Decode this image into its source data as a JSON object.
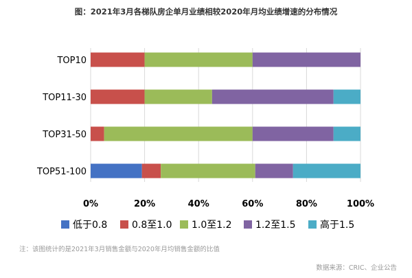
{
  "chart_data": {
    "type": "bar",
    "orientation": "horizontal",
    "stacked": true,
    "title": "图：2021年3月各梯队房企单月业绩相较2020年月均业绩增速的分布情况",
    "categories": [
      "TOP10",
      "TOP11-30",
      "TOP31-50",
      "TOP51-100"
    ],
    "series": [
      {
        "name": "低于0.8",
        "color": "#4472C4",
        "values": [
          0,
          0,
          0,
          19
        ]
      },
      {
        "name": "0.8至1.0",
        "color": "#C8504B",
        "values": [
          20,
          20,
          5,
          7
        ]
      },
      {
        "name": "1.0至1.2",
        "color": "#9BBB59",
        "values": [
          40,
          25,
          55,
          35
        ]
      },
      {
        "name": "1.2至1.5",
        "color": "#8064A2",
        "values": [
          40,
          45,
          30,
          14
        ]
      },
      {
        "name": "高于1.5",
        "color": "#4BACC6",
        "values": [
          0,
          10,
          10,
          25
        ]
      }
    ],
    "xlim": [
      0,
      100
    ],
    "xticks": [
      "0%",
      "20%",
      "40%",
      "60%",
      "80%",
      "100%"
    ],
    "grid": true,
    "legend_position": "bottom",
    "note": "注：该图统计的是2021年3月销售金额与2020年月均销售金额的比值",
    "source": "数据来源：CRIC、企业公告"
  }
}
